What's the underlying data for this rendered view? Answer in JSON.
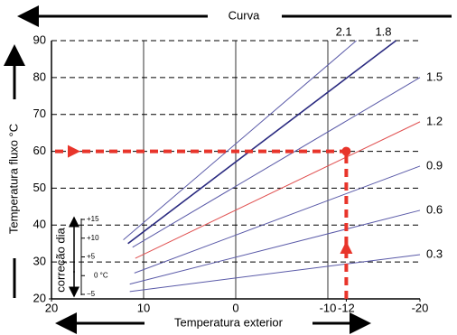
{
  "chart_data": {
    "type": "line",
    "top_label": "Curva",
    "x_label": "Temperatura exterior",
    "y_label": "Temperatura fluxo °C",
    "xlim": [
      20,
      -20
    ],
    "ylim": [
      20,
      90
    ],
    "xticks": [
      20,
      10,
      0,
      -10,
      -12,
      -20
    ],
    "yticks": [
      20,
      30,
      40,
      50,
      60,
      70,
      80,
      90
    ],
    "series": [
      {
        "name": "2.1",
        "color": "#5a5aa8",
        "x": [
          12.2,
          -13.1
        ],
        "values": [
          36,
          90
        ]
      },
      {
        "name": "1.8",
        "color": "#2a2a80",
        "x": [
          11.7,
          -17.4
        ],
        "values": [
          35,
          90
        ]
      },
      {
        "name": "1.5",
        "color": "#5a5aa8",
        "x": [
          11.2,
          -20
        ],
        "values": [
          34,
          80
        ]
      },
      {
        "name": "1.2",
        "color": "#e05050",
        "x": [
          10.9,
          -20
        ],
        "values": [
          31,
          68
        ]
      },
      {
        "name": "0.9",
        "color": "#5a5aa8",
        "x": [
          11,
          -20
        ],
        "values": [
          27,
          56
        ]
      },
      {
        "name": "0.6",
        "color": "#5a5aa8",
        "x": [
          11.5,
          -20
        ],
        "values": [
          24,
          44
        ]
      },
      {
        "name": "0.3",
        "color": "#5a5aa8",
        "x": [
          11.5,
          -20
        ],
        "values": [
          22,
          32
        ]
      }
    ],
    "operating_point": {
      "x": -12,
      "y": 60,
      "color": "#e8352b"
    },
    "correction": {
      "label": "correção dia",
      "ticks": [
        "+15",
        "+10",
        "+5",
        "0 °C",
        "−5"
      ]
    }
  }
}
